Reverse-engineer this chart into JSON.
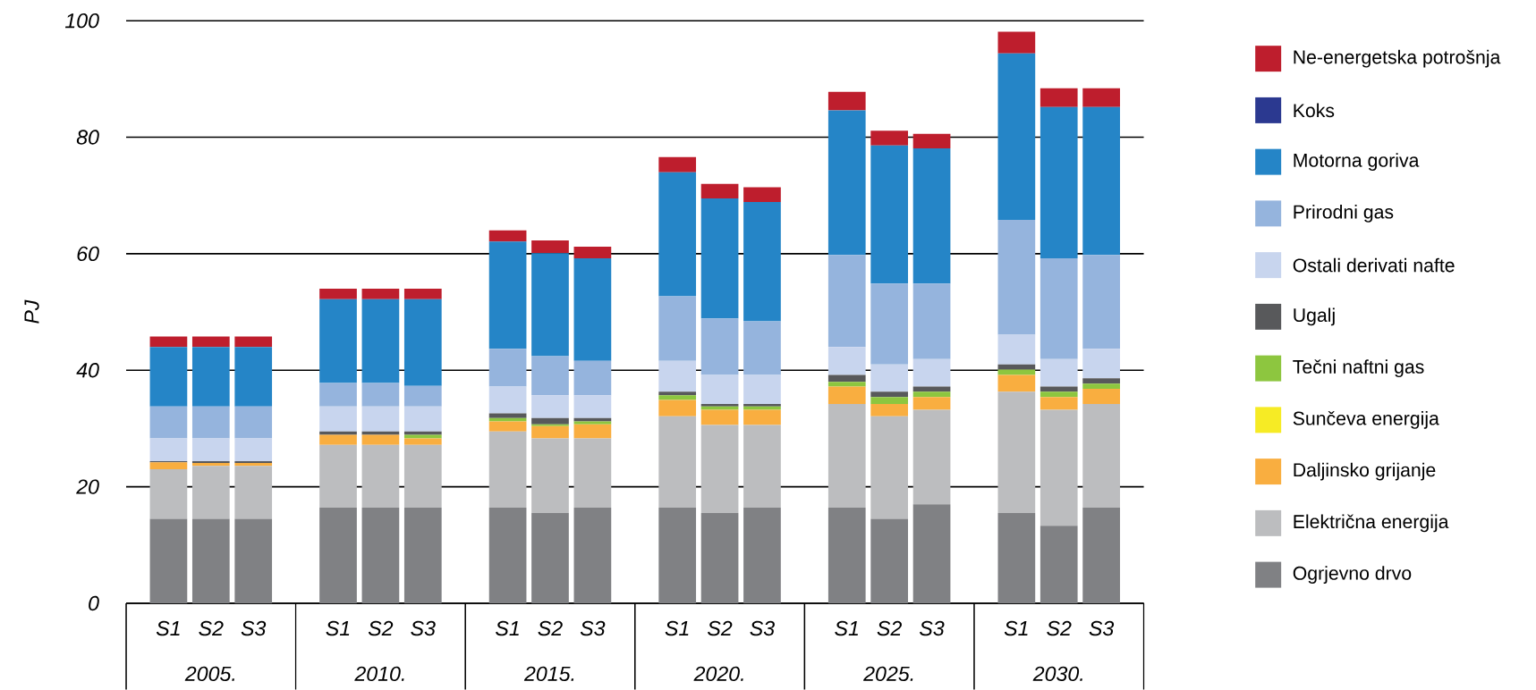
{
  "chart_data": {
    "type": "bar",
    "stacked": true,
    "ylabel": "PJ",
    "ylim": [
      0,
      100
    ],
    "yticks": [
      0,
      20,
      40,
      60,
      80,
      100
    ],
    "grid": "y",
    "legend": "right",
    "categories": [
      "S1",
      "S2",
      "S3",
      "S1",
      "S2",
      "S3",
      "S1",
      "S2",
      "S3",
      "S1",
      "S2",
      "S3",
      "S1",
      "S2",
      "S3",
      "S1",
      "S2",
      "S3"
    ],
    "annotations": [
      "2005.",
      "2010.",
      "2015.",
      "2020.",
      "2025.",
      "2030."
    ],
    "series": [
      {
        "name": "Ogrjevno drvo",
        "color": "#808184",
        "values": [
          14.5,
          14.5,
          14.5,
          16.4,
          16.4,
          16.4,
          16.4,
          15.5,
          16.4,
          16.4,
          15.5,
          16.4,
          16.4,
          14.5,
          17.0,
          15.5,
          13.3,
          16.4
        ]
      },
      {
        "name": "Električna energija",
        "color": "#bcbdbf",
        "values": [
          8.5,
          9.1,
          9.1,
          10.8,
          10.8,
          10.8,
          13.1,
          12.8,
          11.9,
          15.7,
          15.1,
          14.2,
          17.8,
          17.6,
          16.2,
          20.8,
          19.9,
          17.8
        ]
      },
      {
        "name": "Daljinsko grijanje",
        "color": "#f9ae40",
        "values": [
          1.2,
          0.5,
          0.5,
          1.7,
          1.7,
          1.1,
          1.7,
          2.1,
          2.4,
          2.8,
          2.6,
          2.6,
          3.0,
          2.1,
          2.2,
          2.9,
          2.2,
          2.6
        ]
      },
      {
        "name": "Sunčeva energija",
        "color": "#f6eb25",
        "values": [
          0,
          0,
          0,
          0,
          0,
          0,
          0,
          0,
          0,
          0,
          0,
          0,
          0,
          0,
          0,
          0,
          0,
          0
        ]
      },
      {
        "name": "Tečni naftni gas",
        "color": "#8dc63f",
        "values": [
          0,
          0,
          0,
          0,
          0,
          0.6,
          0.6,
          0.3,
          0.5,
          0.8,
          0.6,
          0.6,
          0.8,
          1.2,
          0.9,
          0.9,
          0.9,
          0.9
        ]
      },
      {
        "name": "Ugalj",
        "color": "#58595b",
        "values": [
          0.2,
          0.3,
          0.3,
          0.6,
          0.6,
          0.6,
          0.8,
          1.1,
          0.6,
          0.6,
          0.4,
          0.4,
          1.2,
          0.9,
          0.9,
          0.9,
          0.9,
          0.9
        ]
      },
      {
        "name": "Ostali derivati nafte",
        "color": "#c8d5ee",
        "values": [
          3.9,
          3.9,
          3.9,
          4.3,
          4.3,
          4.3,
          4.6,
          3.9,
          3.9,
          5.3,
          5.0,
          5.0,
          4.8,
          4.7,
          4.7,
          5.1,
          4.7,
          5.1
        ]
      },
      {
        "name": "Prirodni gas",
        "color": "#95b4dd",
        "values": [
          5.5,
          5.5,
          5.5,
          4.0,
          4.0,
          3.5,
          6.5,
          6.7,
          5.9,
          11.1,
          9.7,
          9.2,
          15.8,
          13.9,
          13.0,
          19.7,
          17.3,
          16.1
        ]
      },
      {
        "name": "Motorna goriva",
        "color": "#2585c7",
        "values": [
          10.2,
          10.2,
          10.2,
          14.4,
          14.4,
          14.9,
          18.4,
          17.7,
          17.6,
          21.3,
          20.6,
          20.5,
          24.8,
          23.7,
          23.2,
          28.6,
          26.0,
          25.4
        ]
      },
      {
        "name": "Koks",
        "color": "#2b3990",
        "values": [
          0,
          0,
          0,
          0,
          0,
          0,
          0,
          0,
          0,
          0,
          0,
          0,
          0,
          0,
          0,
          0,
          0,
          0
        ]
      },
      {
        "name": "Ne-energetska potrošnja",
        "color": "#be1e2d",
        "values": [
          1.8,
          1.8,
          1.8,
          1.8,
          1.8,
          1.8,
          1.9,
          2.2,
          2.0,
          2.6,
          2.5,
          2.5,
          3.2,
          2.5,
          2.5,
          3.7,
          3.2,
          3.2
        ]
      }
    ]
  }
}
